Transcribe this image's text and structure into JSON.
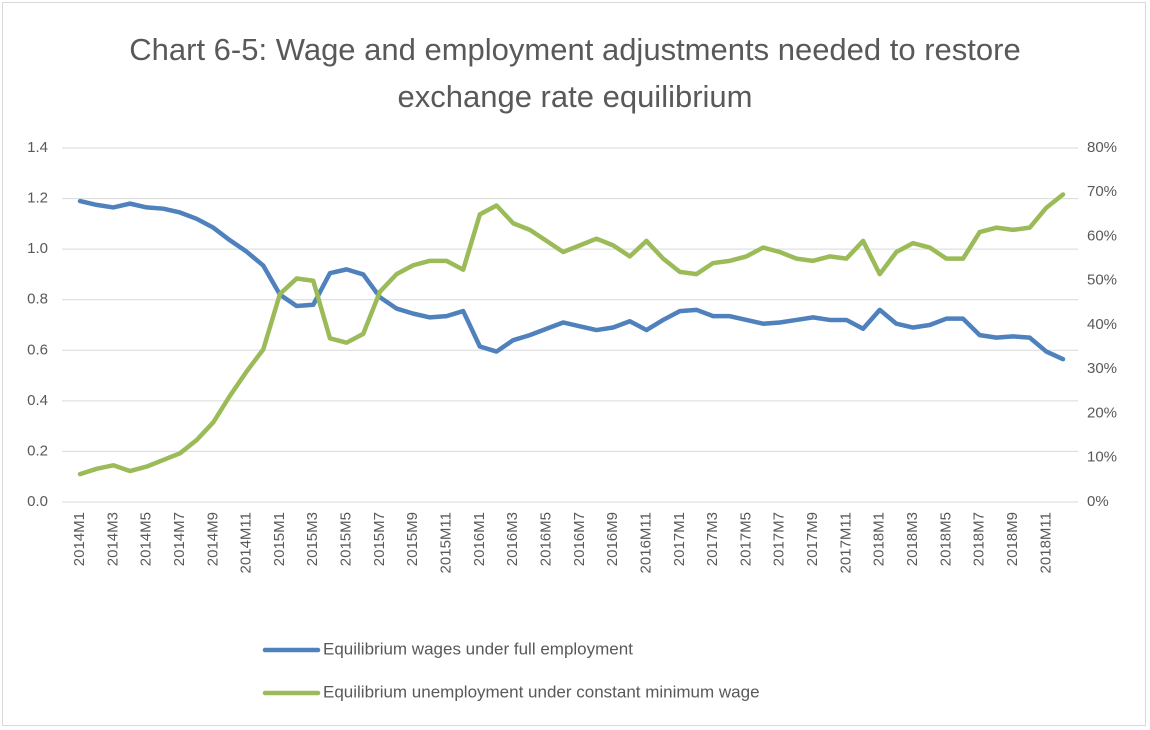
{
  "chart_data": {
    "type": "line",
    "title": "Chart 6-5: Wage and employment adjustments needed to restore exchange rate equilibrium",
    "categories": [
      "2014M1",
      null,
      "2014M3",
      null,
      "2014M5",
      null,
      "2014M7",
      null,
      "2014M9",
      null,
      "2014M11",
      null,
      "2015M1",
      null,
      "2015M3",
      null,
      "2015M5",
      null,
      "2015M7",
      null,
      "2015M9",
      null,
      "2015M11",
      null,
      "2016M1",
      null,
      "2016M3",
      null,
      "2016M5",
      null,
      "2016M7",
      null,
      "2016M9",
      null,
      "2016M11",
      null,
      "2017M1",
      null,
      "2017M3",
      null,
      "2017M5",
      null,
      "2017M7",
      null,
      "2017M9",
      null,
      "2017M11",
      null,
      "2018M1",
      null,
      "2018M3",
      null,
      "2018M5",
      null,
      "2018M7",
      null,
      "2018M9",
      null,
      "2018M11",
      null
    ],
    "series": [
      {
        "name": "Equilibrium wages under full employment",
        "color": "#4f81bd",
        "axis": "y",
        "values": [
          1.19,
          1.175,
          1.165,
          1.18,
          1.165,
          1.16,
          1.145,
          1.12,
          1.085,
          1.035,
          0.99,
          0.935,
          0.82,
          0.775,
          0.78,
          0.905,
          0.92,
          0.9,
          0.81,
          0.765,
          0.745,
          0.73,
          0.735,
          0.755,
          0.615,
          0.595,
          0.64,
          0.66,
          0.685,
          0.71,
          0.695,
          0.68,
          0.69,
          0.715,
          0.68,
          0.72,
          0.755,
          0.76,
          0.735,
          0.735,
          0.72,
          0.705,
          0.71,
          0.72,
          0.73,
          0.72,
          0.72,
          0.685,
          0.76,
          0.705,
          0.69,
          0.7,
          0.725,
          0.725,
          0.66,
          0.65,
          0.655,
          0.65,
          0.595,
          0.565
        ]
      },
      {
        "name": "Equilibrium unemployment under constant minimum wage",
        "color": "#9bbb59",
        "axis": "y2",
        "values": [
          6.3,
          7.5,
          8.3,
          7,
          8,
          9.5,
          11,
          14,
          18,
          24,
          29.5,
          34.5,
          47,
          50.5,
          50,
          37,
          36,
          38,
          47.5,
          51.5,
          53.5,
          54.5,
          54.5,
          52.5,
          65,
          67,
          63,
          61.5,
          59,
          56.5,
          58,
          59.5,
          58,
          55.5,
          59,
          55,
          52,
          51.5,
          54,
          54.5,
          55.5,
          57.5,
          56.5,
          55,
          54.5,
          55.5,
          55,
          59,
          51.5,
          56.5,
          58.5,
          57.5,
          55,
          55,
          61,
          62,
          61.5,
          62,
          66.5,
          69.5
        ]
      }
    ],
    "ylim": [
      0,
      1.4
    ],
    "yticks": [
      {
        "value": 0,
        "label": "0.0"
      },
      0.2,
      0.4,
      0.6,
      0.8,
      {
        "value": 1,
        "label": "1.0"
      },
      1.2,
      1.4
    ],
    "y2lim": [
      0,
      80
    ],
    "y2ticks": [
      {
        "value": 0,
        "label": "0%"
      },
      {
        "value": 10,
        "label": "10%"
      },
      {
        "value": 20,
        "label": "20%"
      },
      {
        "value": 30,
        "label": "30%"
      },
      {
        "value": 40,
        "label": "40%"
      },
      {
        "value": 50,
        "label": "50%"
      },
      {
        "value": 60,
        "label": "60%"
      },
      {
        "value": 70,
        "label": "70%"
      },
      {
        "value": 80,
        "label": "80%"
      }
    ],
    "grid": true
  }
}
